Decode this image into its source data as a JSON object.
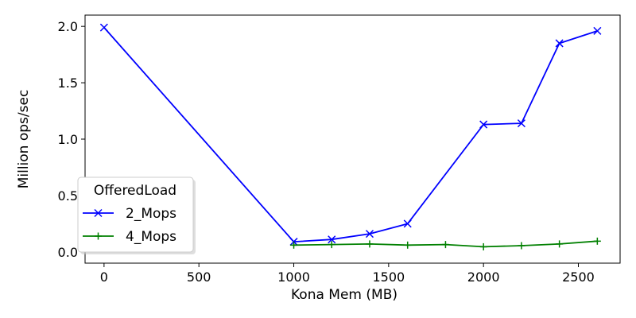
{
  "chart_data": {
    "type": "line",
    "xlabel": "Kona Mem (MB)",
    "ylabel": "Million ops/sec",
    "xlim": [
      -100,
      2720
    ],
    "ylim": [
      -0.1,
      2.1
    ],
    "xticks": [
      0,
      500,
      1000,
      1500,
      2000,
      2500
    ],
    "xtick_labels": [
      "0",
      "500",
      "1000",
      "1500",
      "2000",
      "2500"
    ],
    "yticks": [
      0.0,
      0.5,
      1.0,
      1.5,
      2.0
    ],
    "ytick_labels": [
      "0.0",
      "0.5",
      "1.0",
      "1.5",
      "2.0"
    ],
    "grid": false,
    "legend": {
      "title": "OfferedLoad",
      "placement": "lower-left"
    },
    "series": [
      {
        "name": "2_Mops",
        "color": "#0000ff",
        "marker": "x",
        "x": [
          0,
          1000,
          1200,
          1400,
          1600,
          2000,
          2200,
          2400,
          2600
        ],
        "y": [
          1.99,
          0.09,
          0.11,
          0.16,
          0.25,
          1.13,
          1.14,
          1.85,
          1.96
        ]
      },
      {
        "name": "4_Mops",
        "color": "#008000",
        "marker": "+",
        "x": [
          1000,
          1200,
          1400,
          1600,
          1800,
          2000,
          2200,
          2400,
          2600
        ],
        "y": [
          0.06,
          0.065,
          0.07,
          0.06,
          0.065,
          0.045,
          0.055,
          0.07,
          0.095
        ]
      }
    ]
  }
}
